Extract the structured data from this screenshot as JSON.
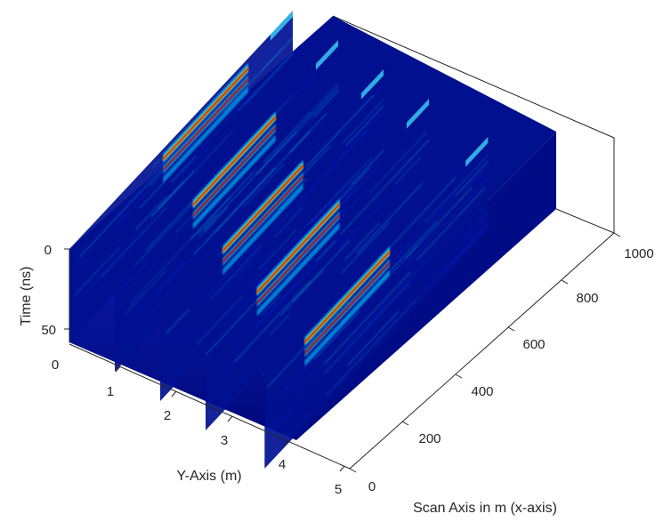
{
  "chart_data": {
    "type": "heatmap",
    "title": "",
    "xlabel": "Scan Axis in m (x-axis)",
    "ylabel": "Y-Axis (m)",
    "zlabel": "Time (ns)",
    "x_ticks": [
      0,
      200,
      400,
      600,
      800,
      1000
    ],
    "y_ticks": [
      0,
      1,
      2,
      3,
      4,
      5
    ],
    "z_ticks": [
      0,
      50
    ],
    "xlim": [
      0,
      1000
    ],
    "ylim": [
      0,
      5
    ],
    "zlim": [
      0,
      60
    ],
    "colormap": "jet",
    "slices": [
      {
        "y": 0,
        "hot_x": [
          420,
          800
        ]
      },
      {
        "y": 1,
        "hot_x": [
          350,
          720
        ]
      },
      {
        "y": 2,
        "hot_x": [
          280,
          640
        ]
      },
      {
        "y": 3,
        "hot_x": [
          230,
          600
        ]
      },
      {
        "y": 4.3,
        "hot_x": [
          180,
          560
        ]
      }
    ],
    "colors": {
      "background": "#000a8f",
      "hot": "#c40000",
      "mid": "#00c8ff",
      "warm": "#ffd400"
    }
  }
}
